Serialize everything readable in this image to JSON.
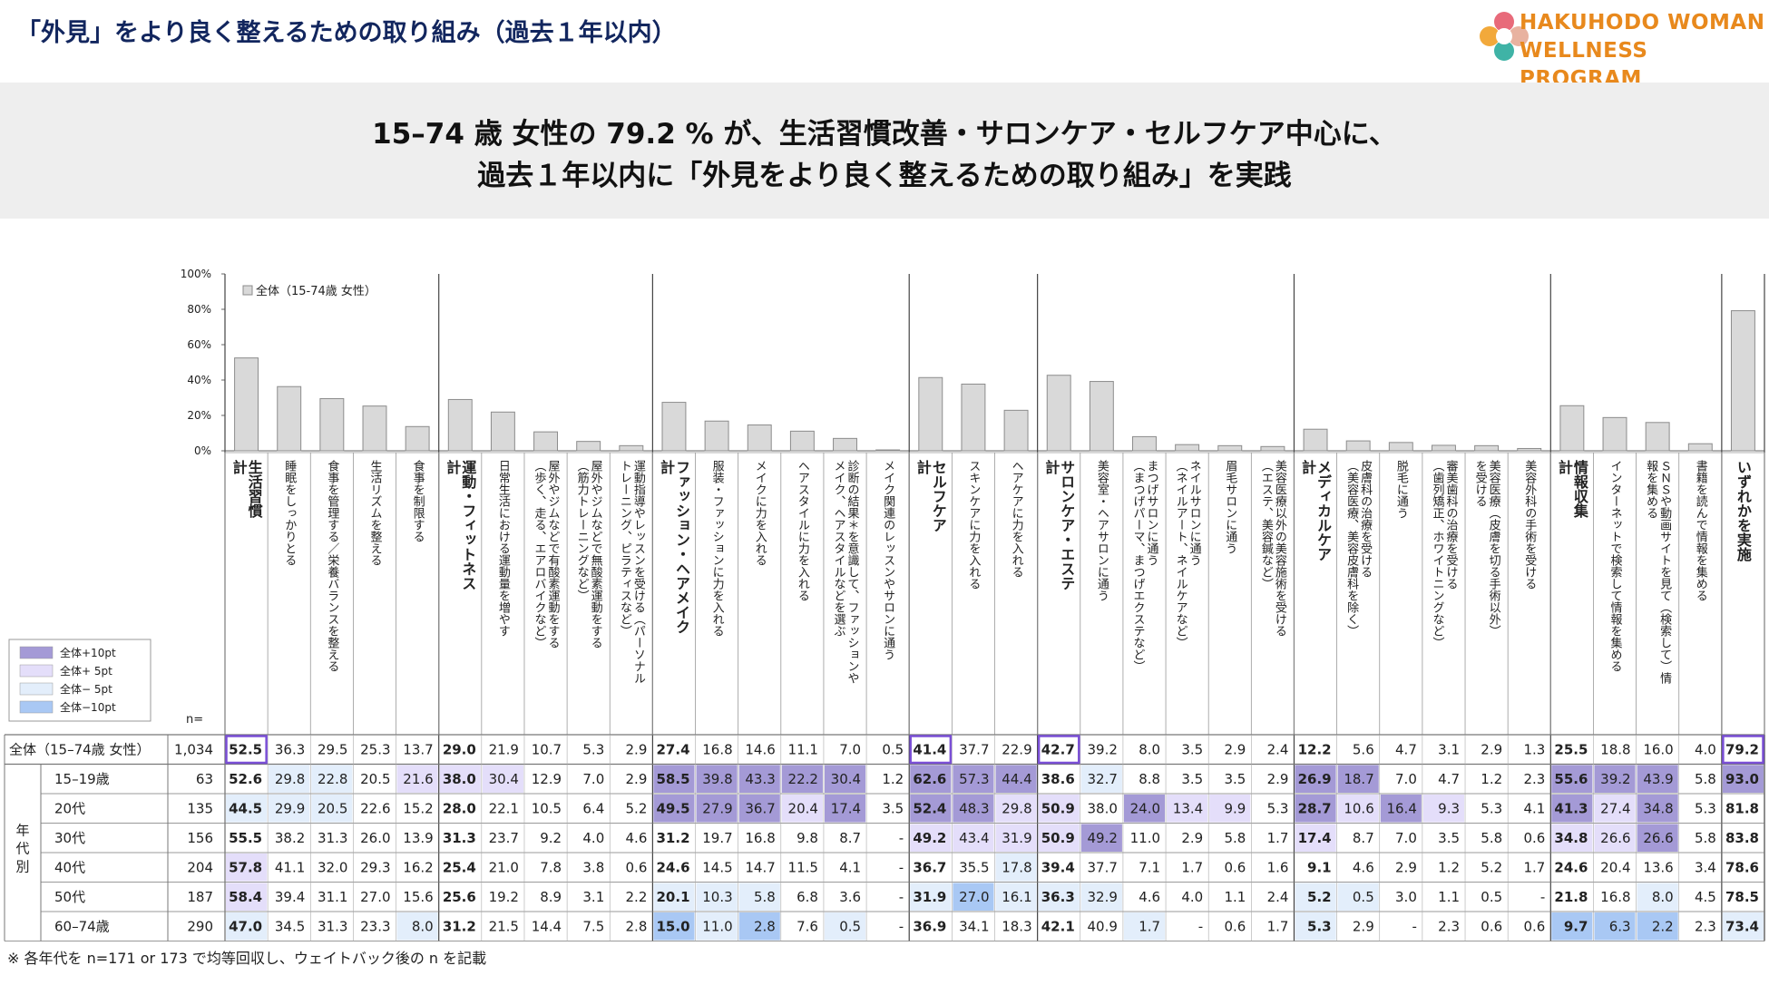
{
  "header": {
    "title": "「外見」をより良く整えるための取り組み（過去１年以内）",
    "logo_line1": "HAKUHODO WOMAN",
    "logo_line2": "WELLNESS PROGRAM"
  },
  "banner": {
    "line1": "15–74 歳 女性の 79.2 % が、生活習慣改善・サロンケア・セルフケア中心に、",
    "line2": "過去１年以内に「外見をより良く整えるための取り組み」を実践"
  },
  "footnote": "※ 各年代を n=171 or 173 で均等回収し、ウェイトバック後の n を記載",
  "colors": {
    "plus10": "#a49ad6",
    "plus5": "#e4defa",
    "minus5": "#e3eefb",
    "minus10": "#a9c8f4",
    "bar": "#d9d9d9",
    "bar_border": "#8c8c8c",
    "total_box": "#7a4fd6"
  },
  "legend": {
    "items": [
      {
        "label": "全体+10pt",
        "color": "#a49ad6"
      },
      {
        "label": "全体+ 5pt",
        "color": "#e4defa"
      },
      {
        "label": "全体− 5pt",
        "color": "#e3eefb"
      },
      {
        "label": "全体−10pt",
        "color": "#a9c8f4"
      }
    ]
  },
  "chart_data": {
    "type": "bar",
    "ylim": [
      0,
      100
    ],
    "yticks": [
      "0%",
      "20%",
      "40%",
      "60%",
      "80%",
      "100%"
    ],
    "series_name": "全体（15-74歳 女性）",
    "n_label": "n=",
    "group_row_label": "年代別",
    "categories": [
      "生活習慣\n計",
      "睡眠をしっかりとる",
      "食事を管理する／栄養バランスを整える",
      "生活リズムを整える",
      "食事を制限する",
      "運動・フィットネス\n計",
      "日常生活における運動量を増やす",
      "屋外やジムなどで有酸素運動をする\n（歩く、走る、エアロバイクなど）",
      "屋外やジムなどで無酸素運動をする\n（筋力トレーニングなど）",
      "運動指導やレッスンを受ける（パーソナル\nトレーニング、ピラティスなど）",
      "ファッション・ヘアメイク\n計",
      "服装・ファッションに力を入れる",
      "メイクに力を入れる",
      "ヘアスタイルに力を入れる",
      "診断の結果＊を意識して、ファッションや\nメイク、ヘアスタイルなどを選ぶ",
      "メイク関連のレッスンやサロンに通う",
      "セルフケア\n計",
      "スキンケアに力を入れる",
      "ヘアケアに力を入れる",
      "サロンケア・エステ\n計",
      "美容室・ヘアサロンに通う",
      "まつげサロンに通う\n（まつげパーマ、まつげエクステなど）",
      "ネイルサロンに通う\n（ネイルアート、ネイルケアなど）",
      "眉毛サロンに通う",
      "美容医療以外の美容施術を受ける\n（エステ、美容鍼など）",
      "メディカルケア\n計",
      "皮膚科の治療を受ける\n（美容医療、美容皮膚科を除く）",
      "脱毛に通う",
      "審美歯科の治療を受ける\n（歯列矯正、ホワイトニングなど）",
      "美容医療（皮膚を切る手術以外）\nを受ける",
      "美容外科の手術を受ける",
      "情報収集\n計",
      "インターネットで検索して情報を集める",
      "ＳＮＳや動画サイトを見て（検索して）情\n報を集める",
      "書籍を読んで情報を集める",
      "いずれかを実施"
    ],
    "totals_idx": [
      0,
      5,
      10,
      16,
      19,
      25,
      31,
      35
    ],
    "rows": [
      {
        "label": "全体（15–74歳 女性）",
        "n": "1,034",
        "values": [
          "52.5",
          "36.3",
          "29.5",
          "25.3",
          "13.7",
          "29.0",
          "21.9",
          "10.7",
          "5.3",
          "2.9",
          "27.4",
          "16.8",
          "14.6",
          "11.1",
          "7.0",
          "0.5",
          "41.4",
          "37.7",
          "22.9",
          "42.7",
          "39.2",
          "8.0",
          "3.5",
          "2.9",
          "2.4",
          "12.2",
          "5.6",
          "4.7",
          "3.1",
          "2.9",
          "1.3",
          "25.5",
          "18.8",
          "16.0",
          "4.0",
          "79.2"
        ]
      },
      {
        "label": "15–19歳",
        "n": "63",
        "values": [
          "52.6",
          "29.8",
          "22.8",
          "20.5",
          "21.6",
          "38.0",
          "30.4",
          "12.9",
          "7.0",
          "2.9",
          "58.5",
          "39.8",
          "43.3",
          "22.2",
          "30.4",
          "1.2",
          "62.6",
          "57.3",
          "44.4",
          "38.6",
          "32.7",
          "8.8",
          "3.5",
          "3.5",
          "2.9",
          "26.9",
          "18.7",
          "7.0",
          "4.7",
          "1.2",
          "2.3",
          "55.6",
          "39.2",
          "43.9",
          "5.8",
          "93.0"
        ]
      },
      {
        "label": "20代",
        "n": "135",
        "values": [
          "44.5",
          "29.9",
          "20.5",
          "22.6",
          "15.2",
          "28.0",
          "22.1",
          "10.5",
          "6.4",
          "5.2",
          "49.5",
          "27.9",
          "36.7",
          "20.4",
          "17.4",
          "3.5",
          "52.4",
          "48.3",
          "29.8",
          "50.9",
          "38.0",
          "24.0",
          "13.4",
          "9.9",
          "5.3",
          "28.7",
          "10.6",
          "16.4",
          "9.3",
          "5.3",
          "4.1",
          "41.3",
          "27.4",
          "34.8",
          "5.3",
          "81.8"
        ]
      },
      {
        "label": "30代",
        "n": "156",
        "values": [
          "55.5",
          "38.2",
          "31.3",
          "26.0",
          "13.9",
          "31.3",
          "23.7",
          "9.2",
          "4.0",
          "4.6",
          "31.2",
          "19.7",
          "16.8",
          "9.8",
          "8.7",
          "-",
          "49.2",
          "43.4",
          "31.9",
          "50.9",
          "49.2",
          "11.0",
          "2.9",
          "5.8",
          "1.7",
          "17.4",
          "8.7",
          "7.0",
          "3.5",
          "5.8",
          "0.6",
          "34.8",
          "26.6",
          "26.6",
          "5.8",
          "83.8"
        ]
      },
      {
        "label": "40代",
        "n": "204",
        "values": [
          "57.8",
          "41.1",
          "32.0",
          "29.3",
          "16.2",
          "25.4",
          "21.0",
          "7.8",
          "3.8",
          "0.6",
          "24.6",
          "14.5",
          "14.7",
          "11.5",
          "4.1",
          "-",
          "36.7",
          "35.5",
          "17.8",
          "39.4",
          "37.7",
          "7.1",
          "1.7",
          "0.6",
          "1.6",
          "9.1",
          "4.6",
          "2.9",
          "1.2",
          "5.2",
          "1.7",
          "24.6",
          "20.4",
          "13.6",
          "3.4",
          "78.6"
        ]
      },
      {
        "label": "50代",
        "n": "187",
        "values": [
          "58.4",
          "39.4",
          "31.1",
          "27.0",
          "15.6",
          "25.6",
          "19.2",
          "8.9",
          "3.1",
          "2.2",
          "20.1",
          "10.3",
          "5.8",
          "6.8",
          "3.6",
          "-",
          "31.9",
          "27.0",
          "16.1",
          "36.3",
          "32.9",
          "4.6",
          "4.0",
          "1.1",
          "2.4",
          "5.2",
          "0.5",
          "3.0",
          "1.1",
          "0.5",
          "-",
          "21.8",
          "16.8",
          "8.0",
          "4.5",
          "78.5"
        ]
      },
      {
        "label": "60–74歳",
        "n": "290",
        "values": [
          "47.0",
          "34.5",
          "31.3",
          "23.3",
          "8.0",
          "31.2",
          "21.5",
          "14.4",
          "7.5",
          "2.8",
          "15.0",
          "11.0",
          "2.8",
          "7.6",
          "0.5",
          "-",
          "36.9",
          "34.1",
          "18.3",
          "42.1",
          "40.9",
          "1.7",
          "-",
          "0.6",
          "1.7",
          "5.3",
          "2.9",
          "-",
          "2.3",
          "0.6",
          "0.6",
          "9.7",
          "6.3",
          "2.2",
          "2.3",
          "73.4"
        ]
      }
    ]
  }
}
